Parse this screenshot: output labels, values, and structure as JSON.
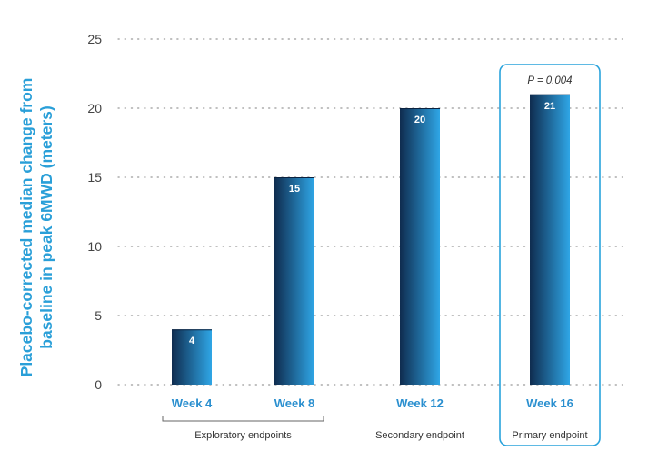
{
  "chart_data": {
    "type": "bar",
    "categories": [
      "Week 4",
      "Week 8",
      "Week 12",
      "Week 16"
    ],
    "values": [
      4,
      15,
      20,
      21
    ],
    "data_labels": [
      "4",
      "15",
      "20",
      "21"
    ],
    "ylabel_lines": [
      "Placebo-corrected median change from",
      "baseline in peak 6MWD (meters)"
    ],
    "ylim": [
      0,
      25
    ],
    "yticks": [
      0,
      5,
      10,
      15,
      20,
      25
    ],
    "grid": "horizontal dotted",
    "groups": [
      {
        "label": "Exploratory endpoints",
        "categories": [
          "Week 4",
          "Week 8"
        ],
        "style": "bracket"
      },
      {
        "label": "Secondary endpoint",
        "categories": [
          "Week 12"
        ],
        "style": "plain"
      },
      {
        "label": "Primary endpoint",
        "categories": [
          "Week 16"
        ],
        "style": "box"
      }
    ],
    "annotation": {
      "category": "Week 16",
      "text": "P = 0.004"
    },
    "colors": {
      "bar_dark": "#0f2c4f",
      "bar_light": "#2fa6e6",
      "highlight": "#2aa3dc",
      "category_text": "#2a8fcf",
      "axis_text": "#444444"
    }
  }
}
